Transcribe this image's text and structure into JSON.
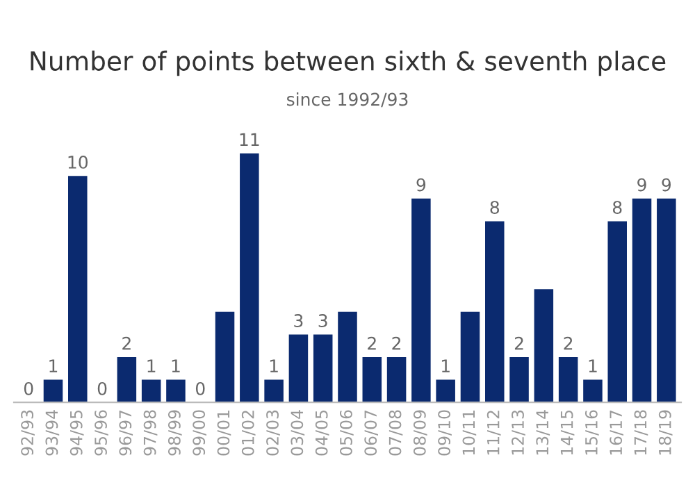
{
  "chart_data": {
    "type": "bar",
    "title": "Number of points between sixth & seventh place",
    "subtitle": "since 1992/93",
    "categories": [
      "92/93",
      "93/94",
      "94/95",
      "95/96",
      "96/97",
      "97/98",
      "98/99",
      "99/00",
      "00/01",
      "01/02",
      "02/03",
      "03/04",
      "04/05",
      "05/06",
      "06/07",
      "07/08",
      "08/09",
      "09/10",
      "10/11",
      "11/12",
      "12/13",
      "13/14",
      "14/15",
      "15/16",
      "16/17",
      "17/18",
      "18/19"
    ],
    "values": [
      0,
      1,
      10,
      0,
      2,
      1,
      1,
      0,
      4,
      11,
      1,
      3,
      3,
      4,
      2,
      2,
      9,
      1,
      4,
      8,
      2,
      5,
      2,
      1,
      8,
      9,
      9
    ],
    "value_labels": [
      "0",
      "1",
      "10",
      "0",
      "2",
      "1",
      "1",
      "0",
      null,
      "11",
      "1",
      "3",
      "3",
      null,
      "2",
      "2",
      "9",
      "1",
      null,
      "8",
      "2",
      null,
      "2",
      "1",
      "8",
      "9",
      "9"
    ],
    "color": "#0b2a6f",
    "tick_labels": "x",
    "grid": false
  }
}
